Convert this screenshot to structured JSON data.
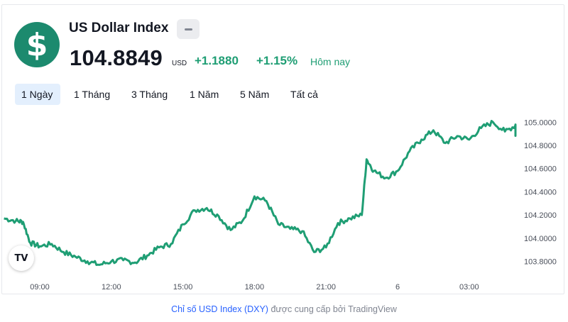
{
  "header": {
    "logo_symbol": "$",
    "title": "US Dollar Index",
    "price": "104.8849",
    "currency": "USD",
    "change": "+1.1880",
    "change_pct": "+1.15%",
    "period_label": "Hôm nay"
  },
  "colors": {
    "logo_bg": "#1c8a6e",
    "line": "#1f9e74",
    "positive": "#1f9e74",
    "active_tab_bg": "#e3effd",
    "link": "#2962ff"
  },
  "tabs": [
    {
      "label": "1 Ngày",
      "active": true
    },
    {
      "label": "1 Tháng",
      "active": false
    },
    {
      "label": "3 Tháng",
      "active": false
    },
    {
      "label": "1 Năm",
      "active": false
    },
    {
      "label": "5 Năm",
      "active": false
    },
    {
      "label": "Tất cả",
      "active": false
    }
  ],
  "chart_data": {
    "type": "line",
    "title": "",
    "xlabel": "",
    "ylabel": "",
    "x_ticks": [
      "09:00",
      "12:00",
      "15:00",
      "18:00",
      "21:00",
      "6",
      "03:00"
    ],
    "y_ticks": [
      "103.8000",
      "104.0000",
      "104.2000",
      "104.4000",
      "104.6000",
      "104.8000",
      "105.0000"
    ],
    "ylim": [
      103.72,
      105.1
    ],
    "grid": false,
    "series": [
      {
        "x_hours": [
          7.5,
          8.0,
          8.3,
          8.6,
          9.0,
          9.5,
          10.0,
          10.5,
          11.0,
          11.5,
          12.0,
          12.5,
          13.0,
          13.5,
          14.0,
          14.5,
          15.0,
          15.5,
          16.0,
          16.5,
          17.0,
          17.5,
          18.0,
          18.5,
          19.0,
          19.5,
          20.0,
          20.5,
          21.0,
          21.5,
          22.0,
          22.5,
          22.7,
          23.0,
          23.5,
          24.0,
          24.5,
          25.0,
          25.5,
          26.0,
          26.5,
          27.0,
          27.5,
          28.0,
          28.5,
          29.0,
          29.5,
          30.0
        ],
        "values": [
          104.17,
          104.15,
          104.14,
          103.96,
          103.93,
          103.95,
          103.88,
          103.84,
          103.8,
          103.77,
          103.8,
          103.81,
          103.79,
          103.85,
          103.92,
          103.95,
          104.12,
          104.24,
          104.26,
          104.19,
          104.07,
          104.15,
          104.36,
          104.32,
          104.12,
          104.08,
          104.06,
          103.88,
          103.92,
          104.13,
          104.17,
          104.2,
          104.68,
          104.58,
          104.52,
          104.58,
          104.75,
          104.85,
          104.93,
          104.82,
          104.88,
          104.85,
          104.95,
          105.0,
          104.92,
          104.98,
          104.95,
          104.89
        ]
      }
    ]
  },
  "footer": {
    "link_text": "Chỉ số USD Index (DXY)",
    "suffix": " được cung cấp bởi TradingView"
  },
  "tv_logo": "TV"
}
